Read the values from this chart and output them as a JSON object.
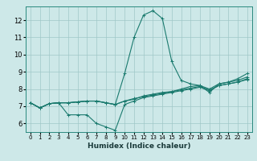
{
  "xlabel": "Humidex (Indice chaleur)",
  "bg_color": "#cde8e8",
  "grid_color": "#a0c8c8",
  "line_color": "#1a7a6e",
  "xlim": [
    -0.5,
    23.5
  ],
  "ylim": [
    5.5,
    12.8
  ],
  "yticks": [
    6,
    7,
    8,
    9,
    10,
    11,
    12
  ],
  "xticks": [
    0,
    1,
    2,
    3,
    4,
    5,
    6,
    7,
    8,
    9,
    10,
    11,
    12,
    13,
    14,
    15,
    16,
    17,
    18,
    19,
    20,
    21,
    22,
    23
  ],
  "series": [
    [
      7.2,
      6.9,
      7.15,
      7.2,
      7.2,
      7.25,
      7.3,
      7.3,
      7.2,
      7.1,
      8.9,
      11.0,
      12.3,
      12.55,
      12.1,
      9.6,
      8.5,
      8.3,
      8.2,
      7.8,
      8.3,
      8.4,
      8.6,
      8.9
    ],
    [
      7.2,
      6.9,
      7.15,
      7.2,
      6.5,
      6.5,
      6.5,
      6.0,
      5.8,
      5.6,
      7.1,
      7.3,
      7.5,
      7.6,
      7.7,
      7.8,
      7.9,
      8.0,
      8.1,
      7.9,
      8.2,
      8.3,
      8.4,
      8.6
    ],
    [
      7.2,
      6.9,
      7.15,
      7.2,
      7.2,
      7.25,
      7.3,
      7.3,
      7.2,
      7.1,
      7.3,
      7.4,
      7.6,
      7.7,
      7.8,
      7.85,
      8.0,
      8.15,
      8.2,
      8.0,
      8.3,
      8.4,
      8.5,
      8.7
    ],
    [
      7.2,
      6.9,
      7.15,
      7.2,
      7.2,
      7.25,
      7.3,
      7.3,
      7.2,
      7.1,
      7.3,
      7.45,
      7.55,
      7.65,
      7.75,
      7.85,
      7.95,
      8.05,
      8.15,
      7.95,
      8.2,
      8.3,
      8.4,
      8.55
    ]
  ]
}
